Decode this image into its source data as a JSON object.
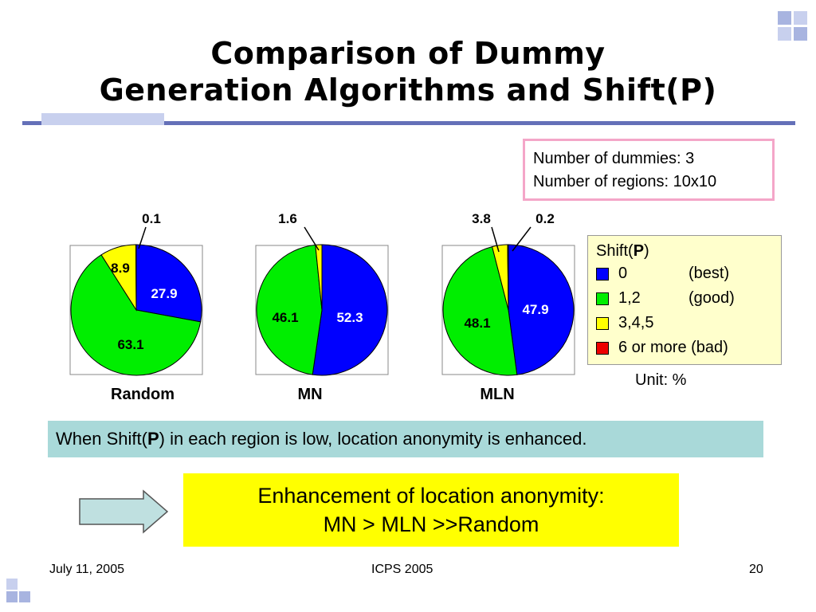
{
  "title": {
    "line1": "Comparison of Dummy",
    "line2": "Generation Algorithms and Shift(P)"
  },
  "info": {
    "line1": "Number of dummies: 3",
    "line2": "Number of regions: 10x10"
  },
  "legend": {
    "title": "Shift(P)",
    "items": [
      {
        "value": "0",
        "desc": "(best)",
        "color": "#0000ff"
      },
      {
        "value": "1,2",
        "desc": "(good)",
        "color": "#00ee00"
      },
      {
        "value": "3,4,5",
        "desc": "",
        "color": "#ffff00"
      },
      {
        "value": "6 or more (bad)",
        "desc": "",
        "color": "#ee0000"
      }
    ]
  },
  "unit": "Unit: %",
  "note": "When Shift(P) in each region is low, location anonymity is enhanced.",
  "enhancement": {
    "line1": "Enhancement of location anonymity:",
    "line2": "MN > MLN >>Random"
  },
  "footer": {
    "date": "July 11, 2005",
    "conf": "ICPS 2005",
    "page": "20"
  },
  "chart_data": [
    {
      "type": "pie",
      "title": "Random",
      "labels": [
        "0",
        "1,2",
        "3,4,5",
        "6 or more"
      ],
      "values": [
        27.9,
        63.1,
        8.9,
        0.1
      ],
      "colors": [
        "#0000ff",
        "#00ee00",
        "#ffff00",
        "#ee0000"
      ]
    },
    {
      "type": "pie",
      "title": "MN",
      "labels": [
        "0",
        "1,2",
        "3,4,5",
        "6 or more"
      ],
      "values": [
        52.3,
        46.1,
        1.6,
        0
      ],
      "colors": [
        "#0000ff",
        "#00ee00",
        "#ffff00",
        "#ee0000"
      ]
    },
    {
      "type": "pie",
      "title": "MLN",
      "labels": [
        "0",
        "1,2",
        "3,4,5",
        "6 or more"
      ],
      "values": [
        47.9,
        48.1,
        3.8,
        0.2
      ],
      "colors": [
        "#0000ff",
        "#00ee00",
        "#ffff00",
        "#ee0000"
      ]
    }
  ]
}
